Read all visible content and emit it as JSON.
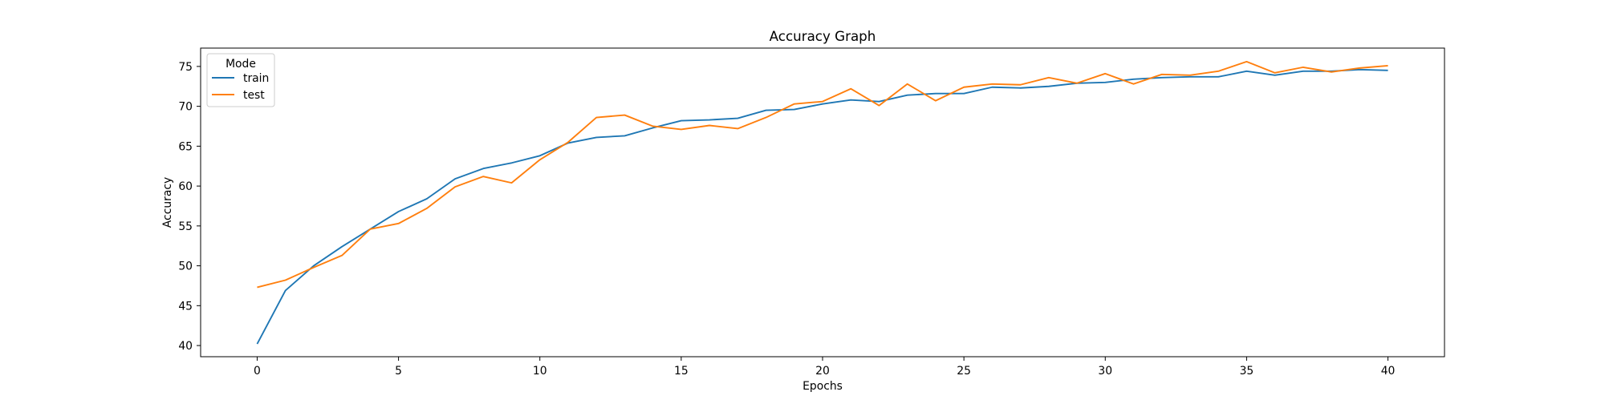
{
  "chart_data": {
    "type": "line",
    "title": "Accuracy Graph",
    "xlabel": "Epochs",
    "ylabel": "Accuracy",
    "xlim": [
      -2,
      42
    ],
    "ylim": [
      38.6,
      77.3
    ],
    "xticks": [
      0,
      5,
      10,
      15,
      20,
      25,
      30,
      35,
      40
    ],
    "yticks": [
      40,
      45,
      50,
      55,
      60,
      65,
      70,
      75
    ],
    "grid": false,
    "legend": {
      "title": "Mode",
      "placement": "top-left"
    },
    "x": [
      0,
      1,
      2,
      3,
      4,
      5,
      6,
      7,
      8,
      9,
      10,
      11,
      12,
      13,
      14,
      15,
      16,
      17,
      18,
      19,
      20,
      21,
      22,
      23,
      24,
      25,
      26,
      27,
      28,
      29,
      30,
      31,
      32,
      33,
      34,
      35,
      36,
      37,
      38,
      39,
      40
    ],
    "series": [
      {
        "name": "train",
        "color": "#1f77b4",
        "values": [
          40.2,
          46.9,
          50.0,
          52.4,
          54.6,
          56.8,
          58.4,
          60.9,
          62.2,
          62.9,
          63.8,
          65.4,
          66.1,
          66.3,
          67.3,
          68.2,
          68.3,
          68.5,
          69.5,
          69.6,
          70.3,
          70.8,
          70.6,
          71.4,
          71.6,
          71.6,
          72.4,
          72.3,
          72.5,
          72.9,
          73.0,
          73.4,
          73.6,
          73.7,
          73.7,
          74.4,
          73.9,
          74.4,
          74.4,
          74.6,
          74.5
        ]
      },
      {
        "name": "test",
        "color": "#ff7f0e",
        "values": [
          47.3,
          48.2,
          49.8,
          51.3,
          54.6,
          55.3,
          57.2,
          59.9,
          61.2,
          60.4,
          63.3,
          65.5,
          68.6,
          68.9,
          67.5,
          67.1,
          67.6,
          67.2,
          68.6,
          70.3,
          70.6,
          72.2,
          70.1,
          72.8,
          70.7,
          72.4,
          72.8,
          72.7,
          73.6,
          72.9,
          74.1,
          72.8,
          74.0,
          73.9,
          74.4,
          75.6,
          74.2,
          74.9,
          74.3,
          74.8,
          75.1
        ]
      }
    ]
  }
}
